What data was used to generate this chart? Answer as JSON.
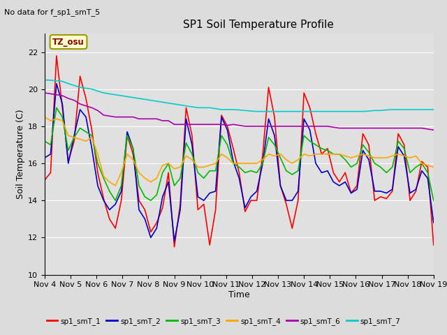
{
  "title": "SP1 Soil Temperature Profile",
  "xlabel": "Time",
  "ylabel": "Soil Temperature (C)",
  "no_data_text": "No data for f_sp1_smT_5",
  "tz_label": "TZ_osu",
  "ylim": [
    10,
    23
  ],
  "yticks": [
    10,
    12,
    14,
    16,
    18,
    20,
    22
  ],
  "x_tick_labels": [
    "Nov 4",
    "Nov 5",
    "Nov 6",
    "Nov 7",
    "Nov 8",
    "Nov 9",
    "Nov 10",
    "Nov 11",
    "Nov 12",
    "Nov 13",
    "Nov 14",
    "Nov 15",
    "Nov 16",
    "Nov 17",
    "Nov 18",
    "Nov 19"
  ],
  "background_color": "#dcdcdc",
  "plot_bg_color": "#e0e0e0",
  "colors": {
    "smT_1": "#ff0000",
    "smT_2": "#0000cc",
    "smT_3": "#00bb00",
    "smT_4": "#ffa500",
    "smT_6": "#aa00aa",
    "smT_7": "#00cccc"
  },
  "smT_1": [
    15.1,
    15.5,
    21.8,
    19.0,
    16.1,
    17.2,
    20.7,
    19.5,
    17.8,
    15.5,
    14.1,
    13.0,
    12.5,
    14.0,
    17.5,
    16.5,
    14.0,
    13.5,
    12.3,
    12.8,
    13.6,
    15.5,
    11.5,
    13.8,
    19.0,
    17.5,
    13.5,
    13.8,
    11.6,
    13.5,
    18.6,
    18.0,
    16.8,
    15.5,
    13.4,
    14.0,
    14.0,
    16.5,
    20.1,
    18.5,
    14.8,
    13.8,
    12.5,
    14.0,
    19.8,
    19.0,
    17.6,
    16.5,
    16.8,
    15.5,
    15.0,
    15.5,
    14.4,
    14.8,
    17.6,
    17.0,
    14.0,
    14.2,
    14.1,
    14.5,
    17.6,
    17.0,
    14.0,
    14.5,
    16.1,
    15.8,
    11.6
  ],
  "smT_2": [
    16.3,
    16.5,
    20.3,
    19.2,
    16.0,
    17.5,
    18.9,
    18.5,
    16.8,
    14.8,
    14.0,
    13.5,
    13.8,
    14.5,
    17.7,
    16.8,
    13.5,
    13.0,
    12.0,
    12.5,
    14.2,
    15.0,
    11.8,
    13.5,
    18.4,
    17.0,
    14.2,
    14.0,
    14.4,
    14.5,
    18.5,
    17.8,
    16.1,
    15.2,
    13.6,
    14.2,
    14.5,
    16.0,
    18.4,
    17.5,
    14.8,
    14.0,
    14.0,
    14.5,
    18.4,
    17.8,
    16.0,
    15.5,
    15.6,
    15.0,
    14.8,
    15.0,
    14.4,
    14.6,
    16.7,
    16.2,
    14.5,
    14.5,
    14.4,
    14.6,
    16.9,
    16.4,
    14.4,
    14.6,
    15.6,
    15.2,
    12.8
  ],
  "smT_3": [
    17.2,
    17.0,
    19.0,
    18.5,
    16.7,
    17.4,
    17.9,
    17.7,
    17.5,
    16.0,
    15.2,
    14.5,
    14.0,
    14.8,
    17.5,
    16.8,
    14.8,
    14.2,
    14.0,
    14.3,
    15.5,
    16.0,
    14.8,
    15.2,
    17.1,
    16.5,
    15.5,
    15.2,
    15.6,
    15.6,
    17.5,
    17.0,
    16.0,
    15.8,
    15.5,
    15.6,
    15.5,
    16.0,
    17.4,
    17.0,
    16.3,
    15.6,
    15.4,
    15.6,
    17.5,
    17.2,
    17.0,
    16.8,
    16.7,
    16.5,
    16.5,
    16.2,
    15.8,
    16.0,
    17.0,
    16.6,
    16.0,
    15.8,
    15.5,
    15.8,
    17.2,
    16.8,
    15.5,
    15.8,
    16.0,
    15.5,
    14.0
  ],
  "smT_4": [
    18.5,
    18.3,
    18.4,
    18.3,
    17.5,
    17.4,
    17.3,
    17.2,
    17.4,
    16.5,
    15.3,
    15.0,
    14.8,
    15.5,
    16.5,
    16.2,
    15.5,
    15.2,
    15.0,
    15.2,
    15.9,
    16.0,
    15.7,
    15.8,
    16.4,
    16.2,
    15.8,
    15.8,
    15.9,
    16.0,
    16.5,
    16.3,
    16.0,
    16.0,
    16.0,
    16.0,
    16.0,
    16.2,
    16.5,
    16.4,
    16.5,
    16.2,
    16.0,
    16.2,
    16.5,
    16.4,
    16.5,
    16.5,
    16.5,
    16.5,
    16.5,
    16.4,
    16.3,
    16.4,
    16.5,
    16.4,
    16.3,
    16.3,
    16.3,
    16.4,
    16.5,
    16.4,
    16.3,
    16.4,
    16.0,
    15.9,
    15.8
  ],
  "smT_6": [
    19.8,
    19.75,
    19.7,
    19.65,
    19.5,
    19.4,
    19.2,
    19.1,
    19.0,
    18.85,
    18.6,
    18.55,
    18.5,
    18.5,
    18.5,
    18.5,
    18.4,
    18.4,
    18.4,
    18.4,
    18.3,
    18.3,
    18.1,
    18.1,
    18.1,
    18.1,
    18.1,
    18.1,
    18.1,
    18.1,
    18.1,
    18.05,
    18.1,
    18.05,
    18.0,
    18.0,
    18.0,
    18.0,
    18.0,
    18.0,
    18.0,
    18.0,
    18.0,
    18.0,
    18.0,
    18.0,
    18.0,
    18.0,
    18.0,
    17.95,
    17.9,
    17.9,
    17.9,
    17.9,
    17.9,
    17.9,
    17.9,
    17.9,
    17.9,
    17.9,
    17.9,
    17.9,
    17.9,
    17.9,
    17.9,
    17.85,
    17.8
  ],
  "smT_7": [
    20.5,
    20.48,
    20.45,
    20.42,
    20.3,
    20.2,
    20.1,
    20.05,
    20.0,
    19.9,
    19.8,
    19.75,
    19.7,
    19.65,
    19.6,
    19.55,
    19.5,
    19.45,
    19.4,
    19.35,
    19.3,
    19.25,
    19.2,
    19.15,
    19.1,
    19.05,
    19.0,
    19.0,
    19.0,
    18.95,
    18.9,
    18.9,
    18.9,
    18.88,
    18.85,
    18.82,
    18.8,
    18.8,
    18.8,
    18.8,
    18.8,
    18.8,
    18.8,
    18.8,
    18.8,
    18.8,
    18.8,
    18.8,
    18.8,
    18.8,
    18.8,
    18.8,
    18.8,
    18.8,
    18.8,
    18.82,
    18.85,
    18.85,
    18.88,
    18.9,
    18.9,
    18.9,
    18.9,
    18.9,
    18.9,
    18.9,
    18.9
  ]
}
